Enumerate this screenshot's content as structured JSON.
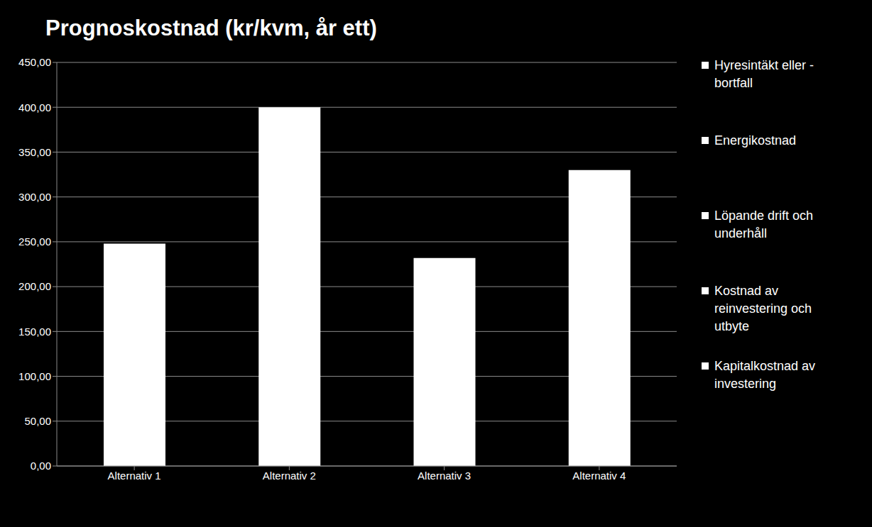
{
  "chart_data": {
    "type": "bar",
    "title": "Prognoskostnad (kr/kvm, år ett)",
    "categories": [
      "Alternativ 1",
      "Alternativ 2",
      "Alternativ 3",
      "Alternativ 4"
    ],
    "stacked": true,
    "series": [
      {
        "name": "Hyresintäkt eller -bortfall",
        "color": "#ffffff",
        "values": [
          null,
          null,
          null,
          null
        ]
      },
      {
        "name": "Energikostnad",
        "color": "#ffffff",
        "values": [
          null,
          null,
          null,
          null
        ]
      },
      {
        "name": "Löpande drift och underhåll",
        "color": "#ffffff",
        "values": [
          null,
          null,
          null,
          null
        ]
      },
      {
        "name": "Kostnad av reinvestering och utbyte",
        "color": "#ffffff",
        "values": [
          null,
          null,
          null,
          null
        ]
      },
      {
        "name": "Kapitalkostnad av investering",
        "color": "#ffffff",
        "values": [
          248,
          400,
          232,
          330
        ]
      }
    ],
    "ylim": [
      0,
      450
    ],
    "yticks": [
      {
        "value": 0,
        "label": "0,00"
      },
      {
        "value": 50,
        "label": "50,00"
      },
      {
        "value": 100,
        "label": "100,00"
      },
      {
        "value": 150,
        "label": "150,00"
      },
      {
        "value": 200,
        "label": "200,00"
      },
      {
        "value": 250,
        "label": "250,00"
      },
      {
        "value": 300,
        "label": "300,00"
      },
      {
        "value": 350,
        "label": "350,00"
      },
      {
        "value": 400,
        "label": "400,00"
      },
      {
        "value": 450,
        "label": "450,00"
      }
    ],
    "grid": true,
    "legend": "right"
  }
}
